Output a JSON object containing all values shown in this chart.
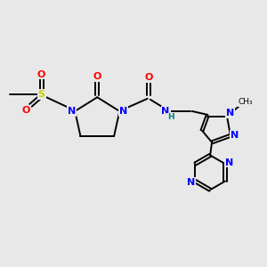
{
  "background_color": "#e8e8e8",
  "atom_colors": {
    "N": "#0000ff",
    "O": "#ff0000",
    "S": "#cccc00",
    "C": "#000000",
    "H": "#008080"
  },
  "figsize": [
    3.0,
    3.0
  ],
  "dpi": 100
}
